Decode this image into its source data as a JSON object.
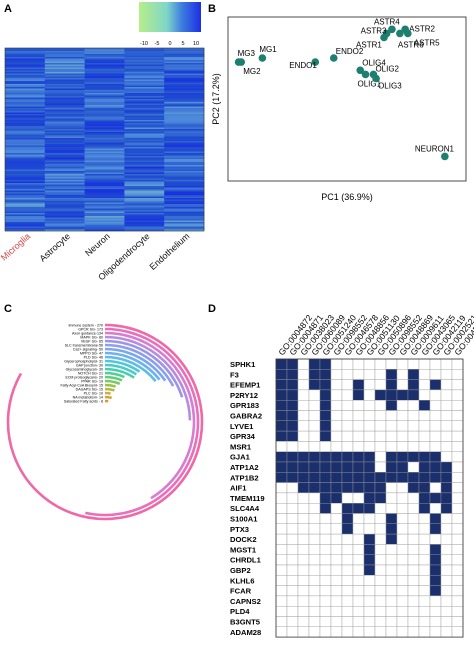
{
  "panels": {
    "A": "A",
    "B": "B",
    "C": "C",
    "D": "D"
  },
  "colors": {
    "heatmap_low": "#9be37a",
    "heatmap_mid": "#1f54c8",
    "heatmap_high": "#1437e6",
    "microglia_label": "#d24545",
    "pca_point": "#1d7f6e",
    "ring_pink": "#ef68a8",
    "matrix_fill": "#1a2f6b"
  },
  "heatmap": {
    "colorbar_ticks": [
      "-10",
      "-5",
      "0",
      "5",
      "10"
    ],
    "columns": [
      {
        "label": "Microglia",
        "highlight": true
      },
      {
        "label": "Astrocyte",
        "highlight": false
      },
      {
        "label": "Neuron",
        "highlight": false
      },
      {
        "label": "Oligodendrocyte",
        "highlight": false
      },
      {
        "label": "Endothelium",
        "highlight": false
      }
    ]
  },
  "chart_data": [
    {
      "type": "scatter",
      "xlabel": "PC1 (36.9%)",
      "ylabel": "PC2 (17.2%)",
      "points": [
        {
          "label": "MG3",
          "x": -0.41,
          "y": 0.54
        },
        {
          "label": "MG2",
          "x": -0.4,
          "y": 0.54
        },
        {
          "label": "MG1",
          "x": -0.32,
          "y": 0.55
        },
        {
          "label": "ENDO1",
          "x": -0.12,
          "y": 0.54
        },
        {
          "label": "ENDO2",
          "x": -0.05,
          "y": 0.55
        },
        {
          "label": "OLIG4",
          "x": 0.05,
          "y": 0.52
        },
        {
          "label": "OLIG1",
          "x": 0.07,
          "y": 0.51
        },
        {
          "label": "OLIG2",
          "x": 0.1,
          "y": 0.51
        },
        {
          "label": "OLIG3",
          "x": 0.11,
          "y": 0.5
        },
        {
          "label": "ASTR1",
          "x": 0.14,
          "y": 0.6
        },
        {
          "label": "ASTR3",
          "x": 0.15,
          "y": 0.61
        },
        {
          "label": "ASTR4",
          "x": 0.17,
          "y": 0.62
        },
        {
          "label": "ASTR6",
          "x": 0.2,
          "y": 0.61
        },
        {
          "label": "ASTR2",
          "x": 0.22,
          "y": 0.62
        },
        {
          "label": "ASTR5",
          "x": 0.23,
          "y": 0.61
        },
        {
          "label": "NEURON1",
          "x": 0.37,
          "y": 0.31
        }
      ],
      "xlim": [
        -0.45,
        0.45
      ],
      "ylim": [
        0.25,
        0.65
      ]
    },
    {
      "type": "bar",
      "layout": "radial",
      "categories": [
        "Immune system - 270",
        "GPCR SG- 173",
        "Axon guidance-134",
        "MAPK SG- 80",
        "VEGF SG- 65",
        "SLC transmembrane-56",
        "Ca2+ signaling- 50",
        "MPPO SG- 47",
        "PLD SG- 46",
        "Glycerophospholipid- 31",
        "GAP junction- 30",
        "Glycosaminoglycan- 30",
        "NOTCH SG- 21",
        "ECM proteoglycans- 20",
        "PPAR SG- 19",
        "Fatty Acyl-CoA Biosynt- 15",
        "DAGAPS SG- 15",
        "PLC SG- 10",
        "NA metabolism- 14",
        "Saturated Fatty acids - 8"
      ],
      "values": [
        270,
        173,
        134,
        80,
        65,
        56,
        50,
        47,
        46,
        31,
        30,
        30,
        21,
        20,
        19,
        15,
        15,
        10,
        14,
        8
      ],
      "colors": [
        "#ef68a8",
        "#e96fb8",
        "#d77bd3",
        "#b68be0",
        "#9b95e8",
        "#8e9dee",
        "#7ba7ef",
        "#6fb1ee",
        "#5fbce6",
        "#52c6d8",
        "#48ccc4",
        "#45cfae",
        "#4fcf94",
        "#60cd79",
        "#79c961",
        "#96c34d",
        "#b3bb43",
        "#c9b03f",
        "#d8a33d",
        "#e0963e"
      ]
    }
  ],
  "matrix": {
    "columns": [
      "GO:0004872",
      "GO:0004871",
      "GO:0038023",
      "GO:0060089",
      "GO:0051240",
      "GO:0098552",
      "GO:0046578",
      "GO:0048856",
      "GO:0051130",
      "GO:0050896",
      "GO:0098552",
      "GO:0048869",
      "GO:0009611",
      "GO:0043065",
      "GO:0042119",
      "GO:0002521",
      "GO:0045085"
    ],
    "rows": [
      "SPHK1",
      "F3",
      "EFEMP1",
      "P2RY12",
      "GPR183",
      "GABRA2",
      "LYVE1",
      "GPR34",
      "MSR1",
      "GJA1",
      "ATP1A2",
      "ATP1B2",
      "AIF1",
      "TMEM119",
      "SLC4A4",
      "S100A1",
      "PTX3",
      "DOCK2",
      "MGST1",
      "CHRDL1",
      "GBP2",
      "KLHL6",
      "FCAR",
      "CAPNS2",
      "PLD4",
      "B3GNT5",
      "ADAM28"
    ],
    "cells": [
      "11011000000000000",
      "11011000001010000",
      "11011001001010100",
      "11001001011110000",
      "11001000001001000",
      "11001000000000000",
      "11001000000000000",
      "11001000000000000",
      "00000000000000000",
      "11111111101111100",
      "11111111101101110",
      "11111111111111110",
      "00111111110011010",
      "00001100110001110",
      "00001011100001010",
      "00000010001000100",
      "00000010001000100",
      "00000000101000000",
      "00000000100000100",
      "00000000100000100",
      "00000000100000100",
      "00000000000000100",
      "00000000000000100",
      "00000000000000000",
      "00000000000000000",
      "00000000000000000",
      "00000000000000000"
    ]
  }
}
